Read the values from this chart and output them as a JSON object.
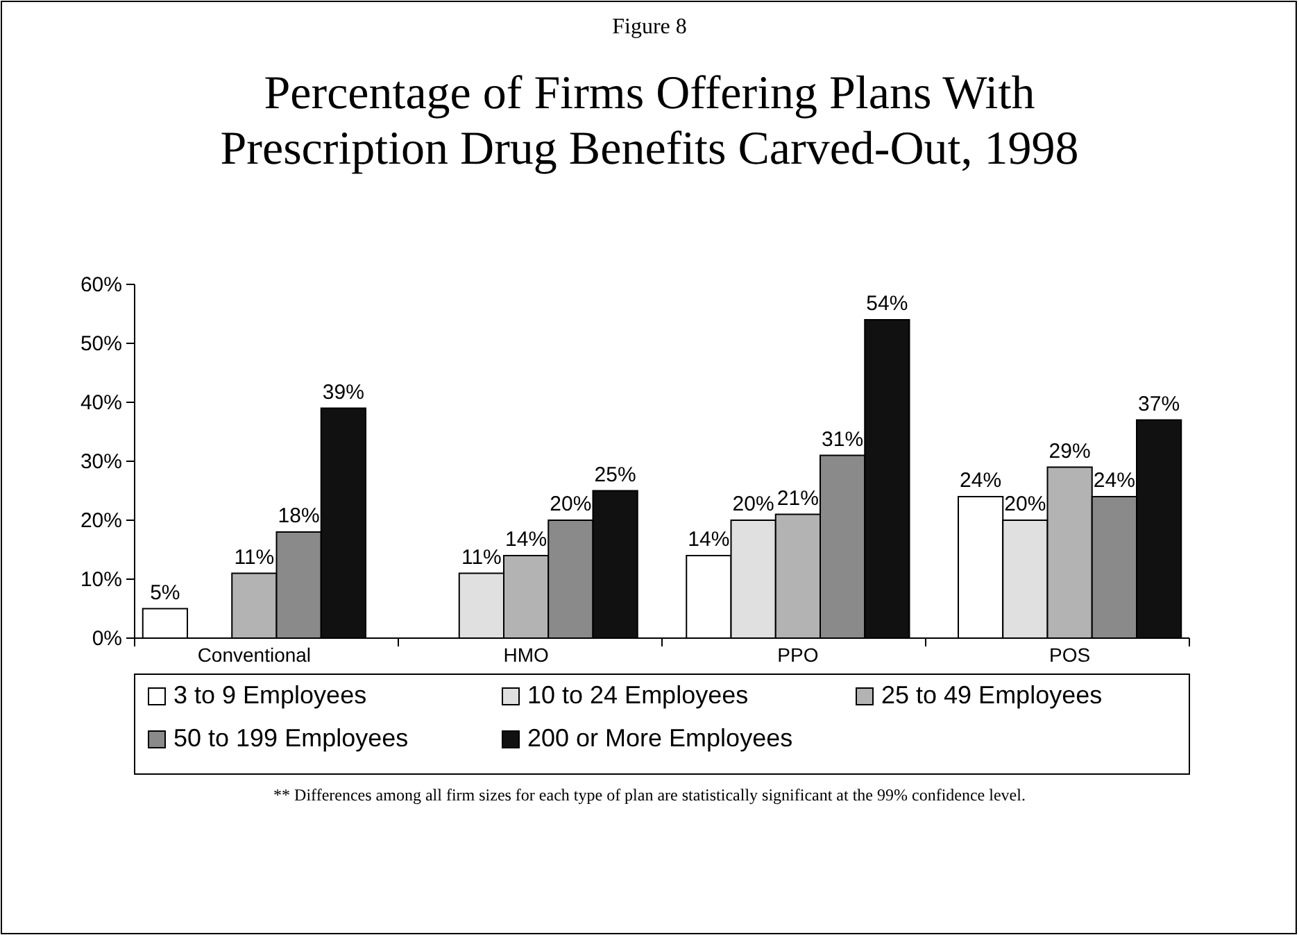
{
  "chart_data": {
    "type": "bar",
    "title": "Percentage of Firms Offering Plans With Prescription Drug Benefits Carved-Out, 1998",
    "subtitle": "Figure 8",
    "categories": [
      "Conventional",
      "HMO",
      "PPO",
      "POS"
    ],
    "series": [
      {
        "name": "3 to 9 Employees",
        "color": "#ffffff",
        "values": [
          5,
          null,
          14,
          24
        ],
        "value_labels": [
          "5%",
          null,
          "14%",
          "24%"
        ]
      },
      {
        "name": "10 to 24 Employees",
        "color": "#e0e0e0",
        "values": [
          null,
          11,
          20,
          20
        ],
        "value_labels": [
          null,
          "11%",
          "20%",
          "20%"
        ]
      },
      {
        "name": "25 to 49 Employees",
        "color": "#b3b3b3",
        "values": [
          11,
          14,
          21,
          29
        ],
        "value_labels": [
          "11%",
          "14%",
          "21%",
          "29%"
        ]
      },
      {
        "name": "50 to 199 Employees",
        "color": "#8a8a8a",
        "values": [
          18,
          20,
          31,
          24
        ],
        "value_labels": [
          "18%",
          "20%",
          "31%",
          "24%"
        ]
      },
      {
        "name": "200 or More Employees",
        "color": "#111111",
        "values": [
          39,
          25,
          54,
          37
        ],
        "value_labels": [
          "39%",
          "25%",
          "54%",
          "37%"
        ]
      }
    ],
    "ylim": [
      0,
      60
    ],
    "yticks": [
      {
        "value": 0,
        "label": "0%"
      },
      {
        "value": 10,
        "label": "10%"
      },
      {
        "value": 20,
        "label": "20%"
      },
      {
        "value": 30,
        "label": "30%"
      },
      {
        "value": 40,
        "label": "40%"
      },
      {
        "value": 50,
        "label": "50%"
      },
      {
        "value": 60,
        "label": "60%"
      }
    ],
    "legend": "bottom",
    "grid": false,
    "annotations": [
      "** Differences among all firm sizes for each type of plan are statistically significant at the 99% confidence level."
    ]
  }
}
